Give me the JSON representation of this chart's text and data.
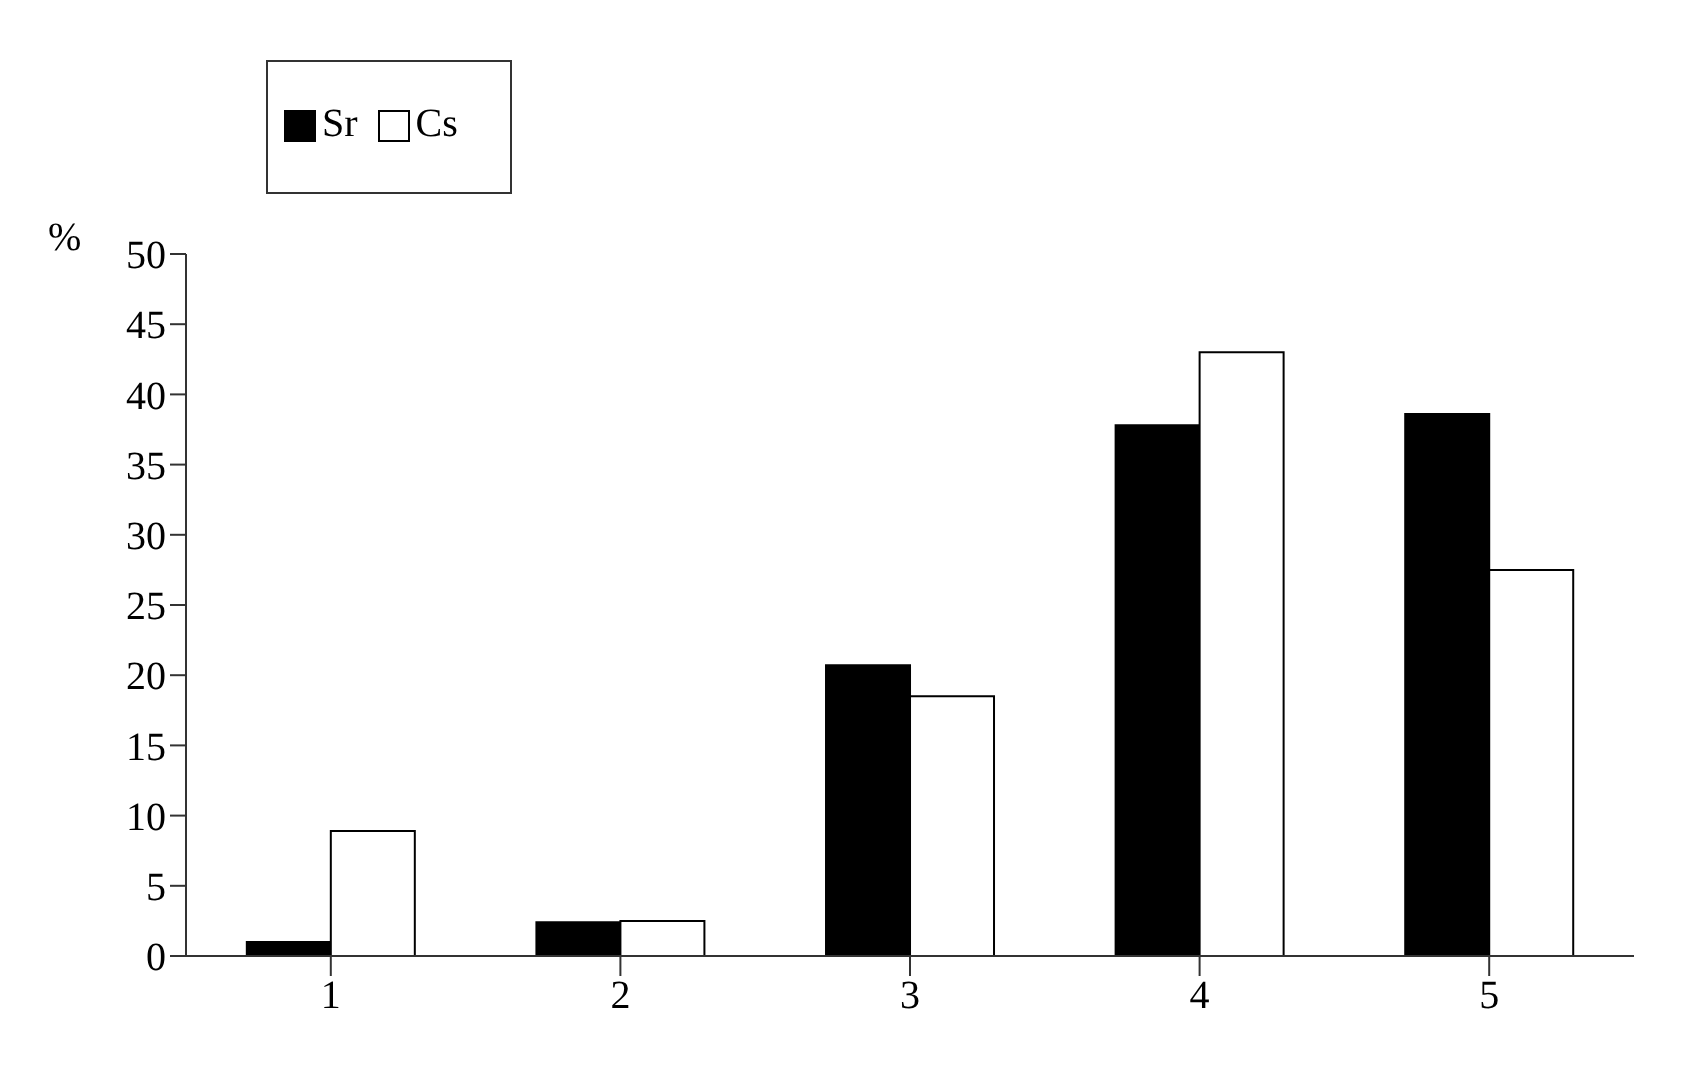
{
  "chart_data": {
    "type": "bar",
    "ylabel": "%",
    "categories": [
      "1",
      "2",
      "3",
      "4",
      "5"
    ],
    "series": [
      {
        "name": "Sr",
        "color": "#000000",
        "values": [
          1.0,
          2.4,
          20.7,
          37.8,
          38.6
        ]
      },
      {
        "name": "Cs",
        "color": "#ffffff",
        "values": [
          8.9,
          2.5,
          18.5,
          43.0,
          27.5
        ]
      }
    ],
    "ylim": [
      0,
      50
    ],
    "yticks": [
      0,
      5,
      10,
      15,
      20,
      25,
      30,
      35,
      40,
      45,
      50
    ],
    "grid": false,
    "legend": "top left"
  }
}
